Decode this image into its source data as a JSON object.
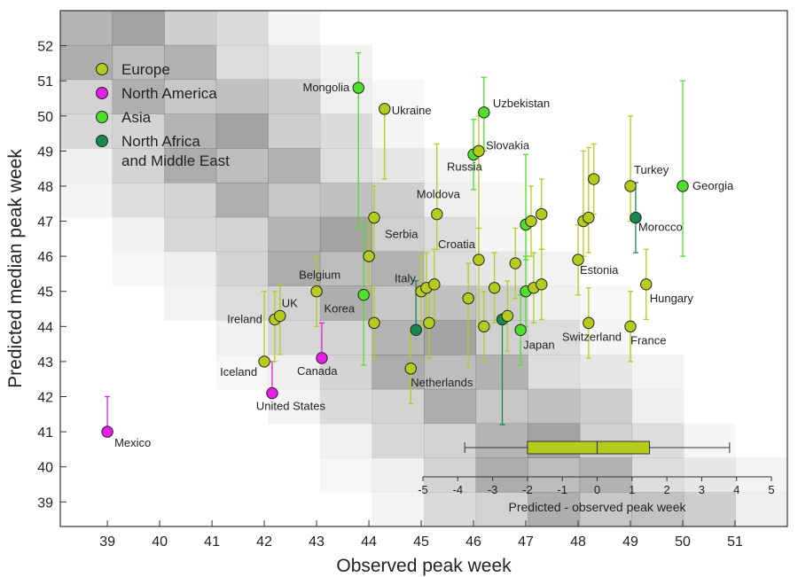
{
  "chart_data": {
    "type": "scatter",
    "title": "",
    "xlabel": "Observed peak week",
    "ylabel": "Predicted median peak week",
    "xlim": [
      38.1,
      52
    ],
    "ylim": [
      38.3,
      53
    ],
    "x_ticks": [
      39,
      40,
      41,
      42,
      43,
      44,
      45,
      46,
      47,
      48,
      49,
      50,
      51
    ],
    "y_ticks": [
      39,
      40,
      41,
      42,
      43,
      44,
      45,
      46,
      47,
      48,
      49,
      50,
      51,
      52
    ],
    "legend": {
      "placement": "top-left",
      "entries": [
        {
          "name": "Europe",
          "color": "#b5cc1e"
        },
        {
          "name": "North America",
          "color": "#e61ee6"
        },
        {
          "name": "Asia",
          "color": "#4ee02a"
        },
        {
          "name": "North Africa\nand Middle East",
          "color": "#178a52"
        }
      ]
    },
    "series_colors": {
      "Europe": "#b5cc1e",
      "North America": "#e61ee6",
      "Asia": "#4ee02a",
      "North Africa and Middle East": "#178a52"
    },
    "points": [
      {
        "label": "Mexico",
        "region": "North America",
        "x": 39.0,
        "y": 41.0,
        "lo": 41.0,
        "hi": 42.0
      },
      {
        "label": "United States",
        "region": "North America",
        "x": 42.15,
        "y": 42.1,
        "lo": 42.1,
        "hi": 43.0
      },
      {
        "label": "Canada",
        "region": "North America",
        "x": 43.1,
        "y": 43.1,
        "lo": 43.1,
        "hi": 44.1
      },
      {
        "label": "Iceland",
        "region": "Europe",
        "x": 42.0,
        "y": 43.0,
        "lo": 43.0,
        "hi": 45.0
      },
      {
        "label": "Ireland",
        "region": "Europe",
        "x": 42.2,
        "y": 44.2,
        "lo": 43.0,
        "hi": 45.0
      },
      {
        "label": "UK",
        "region": "Europe",
        "x": 42.3,
        "y": 44.3,
        "lo": 43.2,
        "hi": 45.2
      },
      {
        "label": "Belgium",
        "region": "Europe",
        "x": 43.0,
        "y": 45.0,
        "lo": 44.0,
        "hi": 46.0
      },
      {
        "label": "Korea",
        "region": "Asia",
        "x": 43.9,
        "y": 44.9,
        "lo": 42.9,
        "hi": 46.9
      },
      {
        "label": "",
        "region": "Europe",
        "x": 44.0,
        "y": 46.0,
        "lo": 45.0,
        "hi": 47.0
      },
      {
        "label": "",
        "region": "Europe",
        "x": 44.1,
        "y": 44.1,
        "lo": 43.1,
        "hi": 45.1
      },
      {
        "label": "Serbia",
        "region": "Europe",
        "x": 44.1,
        "y": 47.1,
        "lo": 46.0,
        "hi": 48.0
      },
      {
        "label": "Mongolia",
        "region": "Asia",
        "x": 43.8,
        "y": 50.8,
        "lo": 46.8,
        "hi": 51.8
      },
      {
        "label": "Ukraine",
        "region": "Europe",
        "x": 44.3,
        "y": 50.2,
        "lo": 48.2,
        "hi": 50.2
      },
      {
        "label": "Moldova",
        "region": "Europe",
        "x": 45.3,
        "y": 47.2,
        "lo": 46.2,
        "hi": 49.2
      },
      {
        "label": "Netherlands",
        "region": "Europe",
        "x": 44.8,
        "y": 42.8,
        "lo": 41.8,
        "hi": 43.8
      },
      {
        "label": "",
        "region": "North Africa and Middle East",
        "x": 44.9,
        "y": 43.9,
        "lo": 43.9,
        "hi": 45.3
      },
      {
        "label": "Italy",
        "region": "Europe",
        "x": 45.0,
        "y": 45.0,
        "lo": 44.0,
        "hi": 46.0
      },
      {
        "label": "",
        "region": "Europe",
        "x": 45.1,
        "y": 45.1,
        "lo": 44.1,
        "hi": 46.1
      },
      {
        "label": "",
        "region": "Europe",
        "x": 45.25,
        "y": 45.2,
        "lo": 44.2,
        "hi": 46.2
      },
      {
        "label": "",
        "region": "Europe",
        "x": 45.15,
        "y": 44.1,
        "lo": 43.1,
        "hi": 45.1
      },
      {
        "label": "",
        "region": "Europe",
        "x": 45.9,
        "y": 44.8,
        "lo": 42.8,
        "hi": 45.8
      },
      {
        "label": "Croatia",
        "region": "Europe",
        "x": 46.1,
        "y": 45.9,
        "lo": 44.0,
        "hi": 46.8
      },
      {
        "label": "",
        "region": "Europe",
        "x": 46.2,
        "y": 44.0,
        "lo": 43.0,
        "hi": 45.0
      },
      {
        "label": "",
        "region": "Europe",
        "x": 46.4,
        "y": 45.1,
        "lo": 44.1,
        "hi": 46.1
      },
      {
        "label": "",
        "region": "North Africa and Middle East",
        "x": 46.55,
        "y": 44.2,
        "lo": 41.2,
        "hi": 44.2
      },
      {
        "label": "",
        "region": "Europe",
        "x": 46.65,
        "y": 44.3,
        "lo": 43.3,
        "hi": 45.3
      },
      {
        "label": "Russia",
        "region": "Asia",
        "x": 46.0,
        "y": 48.9,
        "lo": 47.9,
        "hi": 49.9
      },
      {
        "label": "Slovakia",
        "region": "Europe",
        "x": 46.1,
        "y": 49.0,
        "lo": 46.0,
        "hi": 50.0
      },
      {
        "label": "Uzbekistan",
        "region": "Asia",
        "x": 46.2,
        "y": 50.1,
        "lo": 49.0,
        "hi": 51.1
      },
      {
        "label": "",
        "region": "Europe",
        "x": 46.8,
        "y": 45.8,
        "lo": 44.8,
        "hi": 46.8
      },
      {
        "label": "",
        "region": "Asia",
        "x": 47.0,
        "y": 46.9,
        "lo": 45.9,
        "hi": 48.9
      },
      {
        "label": "",
        "region": "Europe",
        "x": 47.1,
        "y": 47.0,
        "lo": 46.0,
        "hi": 48.0
      },
      {
        "label": "",
        "region": "Europe",
        "x": 47.3,
        "y": 47.2,
        "lo": 46.2,
        "hi": 48.2
      },
      {
        "label": "Japan",
        "region": "Asia",
        "x": 46.9,
        "y": 43.9,
        "lo": 42.9,
        "hi": 44.9
      },
      {
        "label": "",
        "region": "Asia",
        "x": 47.0,
        "y": 45.0,
        "lo": 44.0,
        "hi": 46.0
      },
      {
        "label": "",
        "region": "Europe",
        "x": 47.15,
        "y": 45.1,
        "lo": 44.1,
        "hi": 46.1
      },
      {
        "label": "",
        "region": "Europe",
        "x": 47.3,
        "y": 45.2,
        "lo": 44.2,
        "hi": 46.2
      },
      {
        "label": "Estonia",
        "region": "Europe",
        "x": 48.0,
        "y": 45.9,
        "lo": 44.9,
        "hi": 46.9
      },
      {
        "label": "",
        "region": "Europe",
        "x": 48.1,
        "y": 47.0,
        "lo": 46.0,
        "hi": 49.0
      },
      {
        "label": "",
        "region": "Europe",
        "x": 48.2,
        "y": 47.1,
        "lo": 46.1,
        "hi": 49.1
      },
      {
        "label": "",
        "region": "Europe",
        "x": 48.3,
        "y": 48.2,
        "lo": 47.2,
        "hi": 49.2
      },
      {
        "label": "Switzerland",
        "region": "Europe",
        "x": 48.2,
        "y": 44.1,
        "lo": 43.1,
        "hi": 45.1
      },
      {
        "label": "Turkey",
        "region": "Europe",
        "x": 49.0,
        "y": 48.0,
        "lo": 47.0,
        "hi": 50.0
      },
      {
        "label": "Morocco",
        "region": "North Africa and Middle East",
        "x": 49.1,
        "y": 47.1,
        "lo": 46.1,
        "hi": 48.1
      },
      {
        "label": "France",
        "region": "Europe",
        "x": 49.0,
        "y": 44.0,
        "lo": 43.0,
        "hi": 45.0
      },
      {
        "label": "Hungary",
        "region": "Europe",
        "x": 49.3,
        "y": 45.2,
        "lo": 44.2,
        "hi": 46.2
      },
      {
        "label": "Georgia",
        "region": "Asia",
        "x": 50.0,
        "y": 48.0,
        "lo": 46.0,
        "hi": 51.0
      }
    ],
    "inset": {
      "type": "boxplot",
      "xlabel": "Predicted - observed peak week",
      "xlim": [
        -5,
        5
      ],
      "x_ticks": [
        -5,
        -4,
        -3,
        -2,
        -1,
        0,
        1,
        2,
        3,
        4,
        5
      ],
      "whisker_low": -3.8,
      "q1": -2.0,
      "median": 0.0,
      "q3": 1.5,
      "whisker_high": 3.8,
      "box_color": "#b5cc1e"
    }
  }
}
